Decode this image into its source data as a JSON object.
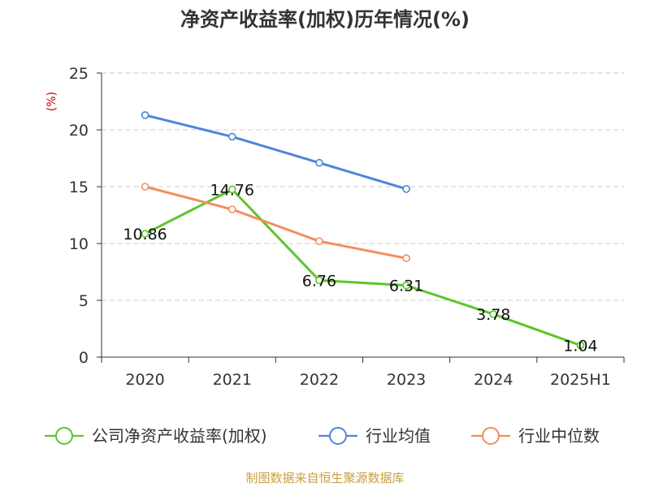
{
  "chart_data": {
    "type": "line",
    "title": "净资产收益率(加权)历年情况(%)",
    "y_unit_label": "(%)",
    "categories": [
      "2020",
      "2021",
      "2022",
      "2023",
      "2024",
      "2025H1"
    ],
    "ylim": [
      0,
      25
    ],
    "y_ticks": [
      "0",
      "5",
      "10",
      "15",
      "20",
      "25"
    ],
    "grid": true,
    "legend_position": "bottom",
    "series": [
      {
        "name": "公司净资产收益率(加权)",
        "color": "#5ec52a",
        "values": [
          10.86,
          14.76,
          6.76,
          6.31,
          3.78,
          1.04
        ],
        "labels": [
          "10.86",
          "14.76",
          "6.76",
          "6.31",
          "3.78",
          "1.04"
        ]
      },
      {
        "name": "行业均值",
        "color": "#4f86d9",
        "values": [
          21.3,
          19.4,
          17.1,
          14.8,
          null,
          null
        ]
      },
      {
        "name": "行业中位数",
        "color": "#f38d5d",
        "values": [
          15.0,
          13.0,
          10.2,
          8.7,
          null,
          null
        ]
      }
    ]
  },
  "source": "制图数据来自恒生聚源数据库"
}
